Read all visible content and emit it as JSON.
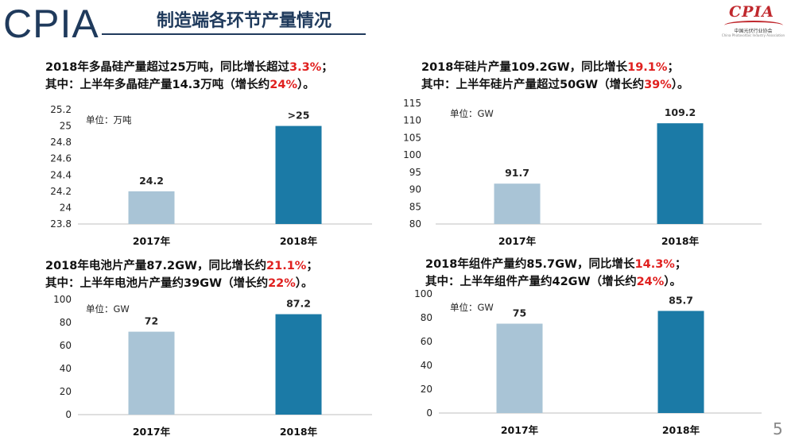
{
  "header": {
    "logo_text": "CPIA",
    "title": "制造端各环节产量情况",
    "org_logo": {
      "mark": "CPIA",
      "cn": "中国光伏行业协会",
      "en": "China Photovoltaic Industry Association"
    }
  },
  "page_number": "5",
  "colors": {
    "bar_2017": "#a9c4d6",
    "bar_2018": "#1b7aa6",
    "highlight": "#e0201f",
    "brand": "#1f3a5c"
  },
  "panels": [
    {
      "line1": [
        "2018年多晶硅产量超过25万吨，同比增长超过",
        "3.3%",
        "；"
      ],
      "line2": [
        "其中：上半年多晶硅产量14.3万吨（增长约",
        "24%",
        "）。"
      ],
      "unit": "单位：万吨"
    },
    {
      "line1": [
        "2018年硅片产量109.2GW，同比增长",
        "19.1%",
        "；"
      ],
      "line2": [
        "其中：上半年硅片产量超过50GW（增长约",
        "39%",
        "）。"
      ],
      "unit": "单位：GW"
    },
    {
      "line1": [
        "2018年电池片产量87.2GW，同比增长约",
        "21.1%",
        "；"
      ],
      "line2": [
        "其中：上半年电池片产量约39GW（增长约",
        "22%",
        "）。"
      ],
      "unit": "单位：GW"
    },
    {
      "line1": [
        "2018年组件产量约85.7GW，同比增长",
        "14.3%",
        "；"
      ],
      "line2": [
        "其中：上半年组件产量约42GW（增长约",
        "24%",
        "）。"
      ],
      "unit": "单位：GW"
    }
  ],
  "chart_data": [
    {
      "type": "bar",
      "categories": [
        "2017年",
        "2018年"
      ],
      "values": [
        24.2,
        25
      ],
      "data_labels": [
        "24.2",
        ">25"
      ],
      "ylim": [
        23.8,
        25.2
      ],
      "yticks": [
        "23.8",
        "24",
        "24.2",
        "24.4",
        "24.6",
        "24.8",
        "25",
        "25.2"
      ],
      "ytick_values": [
        23.8,
        24,
        24.2,
        24.4,
        24.6,
        24.8,
        25,
        25.2
      ],
      "ylabel": "单位：万吨"
    },
    {
      "type": "bar",
      "categories": [
        "2017年",
        "2018年"
      ],
      "values": [
        91.7,
        109.2
      ],
      "data_labels": [
        "91.7",
        "109.2"
      ],
      "ylim": [
        80,
        115
      ],
      "yticks": [
        "80",
        "85",
        "90",
        "95",
        "100",
        "105",
        "110",
        "115"
      ],
      "ytick_values": [
        80,
        85,
        90,
        95,
        100,
        105,
        110,
        115
      ],
      "ylabel": "单位：GW"
    },
    {
      "type": "bar",
      "categories": [
        "2017年",
        "2018年"
      ],
      "values": [
        72,
        87.2
      ],
      "data_labels": [
        "72",
        "87.2"
      ],
      "ylim": [
        0,
        100
      ],
      "yticks": [
        "0",
        "20",
        "40",
        "60",
        "80",
        "100"
      ],
      "ytick_values": [
        0,
        20,
        40,
        60,
        80,
        100
      ],
      "ylabel": "单位：GW"
    },
    {
      "type": "bar",
      "categories": [
        "2017年",
        "2018年"
      ],
      "values": [
        75,
        85.7
      ],
      "data_labels": [
        "75",
        "85.7"
      ],
      "ylim": [
        0,
        100
      ],
      "yticks": [
        "0",
        "20",
        "40",
        "60",
        "80",
        "100"
      ],
      "ytick_values": [
        0,
        20,
        40,
        60,
        80,
        100
      ],
      "ylabel": "单位：GW"
    }
  ]
}
